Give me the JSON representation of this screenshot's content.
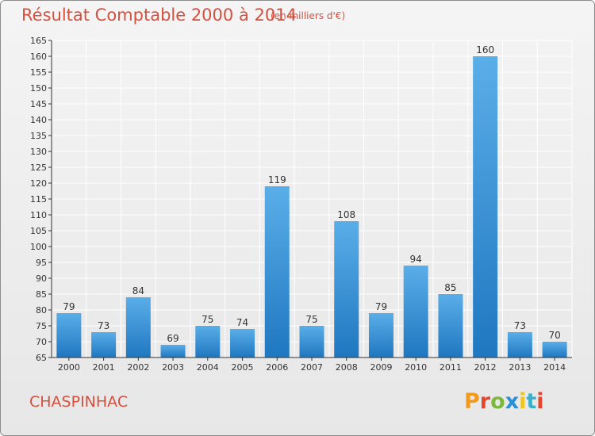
{
  "header": {
    "title": "Résultat Comptable 2000 à 2014",
    "subtitle": "(en milliers d'€)"
  },
  "footer": {
    "commune": "CHASPINHAC",
    "logo_letters": [
      "P",
      "r",
      "o",
      "x",
      "i",
      "t",
      "i"
    ],
    "logo_colors": [
      "#f39a1d",
      "#e8442b",
      "#7cb83c",
      "#2a8fd6",
      "#f0c419",
      "#3cb0c9",
      "#e8442b"
    ]
  },
  "colors": {
    "bar_light": "#5aaee8",
    "bar_dark": "#1f77c0",
    "grid": "#ffffff",
    "axis": "#333333",
    "accent": "#d4503f"
  },
  "chart_data": {
    "type": "bar",
    "categories": [
      "2000",
      "2001",
      "2002",
      "2003",
      "2004",
      "2005",
      "2006",
      "2007",
      "2008",
      "2009",
      "2010",
      "2011",
      "2012",
      "2013",
      "2014"
    ],
    "values": [
      79,
      73,
      84,
      69,
      75,
      74,
      119,
      75,
      108,
      79,
      94,
      85,
      160,
      73,
      70
    ],
    "title": "Résultat Comptable 2000 à 2014",
    "subtitle": "(en milliers d'€)",
    "xlabel": "",
    "ylabel": "",
    "ylim": [
      65,
      165
    ],
    "yticks": [
      65,
      70,
      75,
      80,
      85,
      90,
      95,
      100,
      105,
      110,
      115,
      120,
      125,
      130,
      135,
      140,
      145,
      150,
      155,
      160,
      165
    ],
    "grid": true,
    "data_labels": true
  }
}
